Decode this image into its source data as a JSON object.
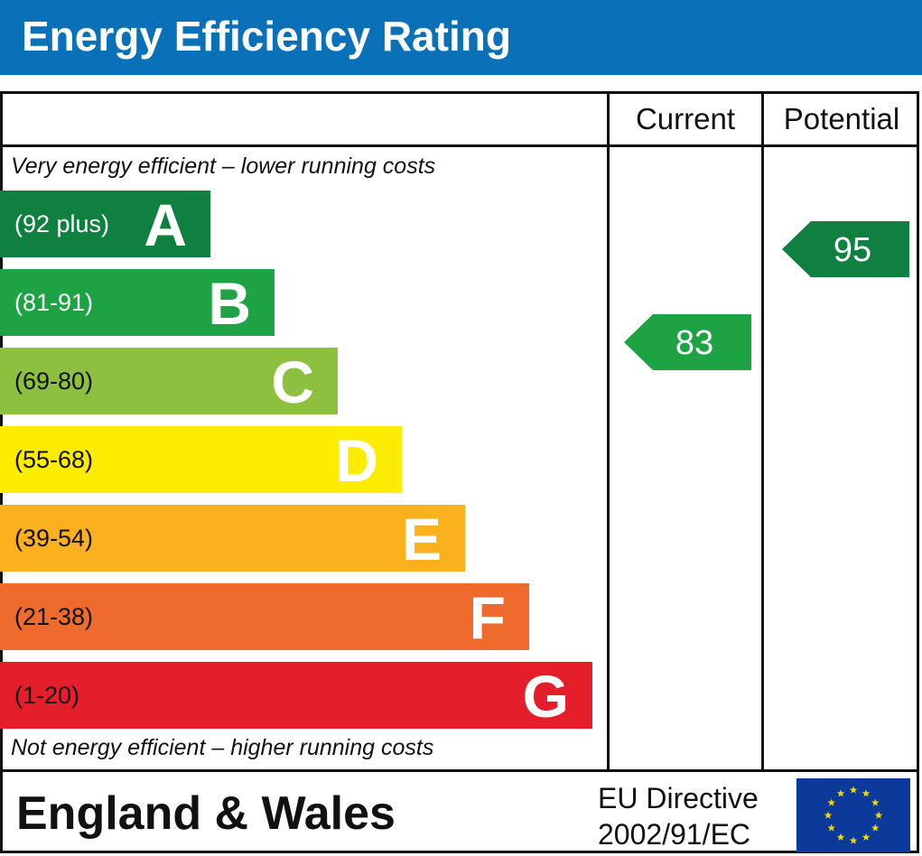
{
  "header": {
    "title": "Energy Efficiency Rating"
  },
  "columns": {
    "current": "Current",
    "potential": "Potential"
  },
  "notes": {
    "top": "Very energy efficient – lower running costs",
    "bottom": "Not energy efficient – higher running costs"
  },
  "footer": {
    "country": "England & Wales",
    "directive_line1": "EU Directive",
    "directive_line2": "2002/91/EC",
    "flag_icon": "eu-flag-icon"
  },
  "colors": {
    "title_bar": "#0a71b9",
    "A": "#0f8040",
    "B": "#1ea344",
    "C": "#8dc03f",
    "D": "#fcec00",
    "E": "#fbb11e",
    "F": "#ef6b2d",
    "G": "#e41e2a",
    "flag": "#0b3a9a",
    "star": "#f5d800"
  },
  "chart_data": {
    "type": "bar",
    "categories": [
      "A",
      "B",
      "C",
      "D",
      "E",
      "F",
      "G"
    ],
    "bands": [
      {
        "letter": "A",
        "range": "(92 plus)",
        "min": 92,
        "max": 100
      },
      {
        "letter": "B",
        "range": "(81-91)",
        "min": 81,
        "max": 91
      },
      {
        "letter": "C",
        "range": "(69-80)",
        "min": 69,
        "max": 80
      },
      {
        "letter": "D",
        "range": "(55-68)",
        "min": 55,
        "max": 68
      },
      {
        "letter": "E",
        "range": "(39-54)",
        "min": 39,
        "max": 54
      },
      {
        "letter": "F",
        "range": "(21-38)",
        "min": 21,
        "max": 38
      },
      {
        "letter": "G",
        "range": "(1-20)",
        "min": 1,
        "max": 20
      }
    ],
    "series": [
      {
        "name": "Current",
        "value": 83,
        "band": "B",
        "label": "83"
      },
      {
        "name": "Potential",
        "value": 95,
        "band": "A",
        "label": "95"
      }
    ]
  }
}
